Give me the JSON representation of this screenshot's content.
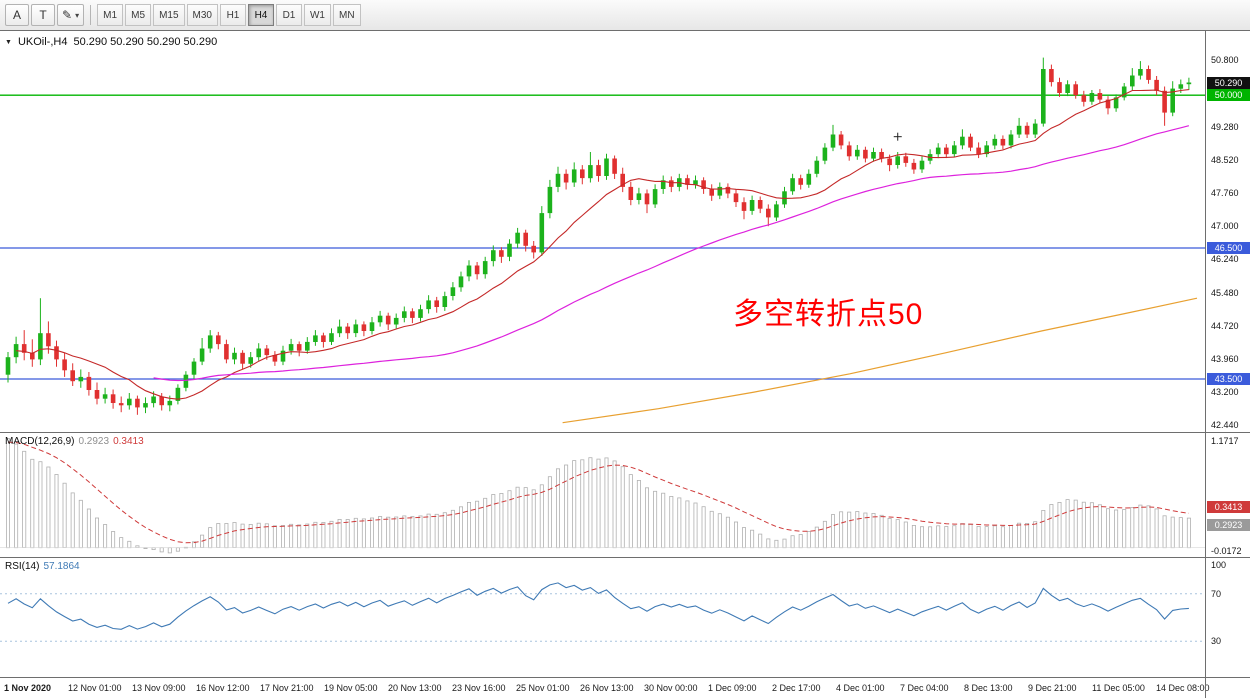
{
  "icons": {
    "collapse": "▼",
    "dropdown_caret": "▾"
  },
  "toolbar": {
    "tools": [
      {
        "name": "cursor-tool-button",
        "label": "A"
      },
      {
        "name": "text-tool-button",
        "label": "T"
      },
      {
        "name": "draw-tool-button",
        "label": "✎",
        "dropdown": true
      }
    ],
    "timeframes": [
      "M1",
      "M5",
      "M15",
      "M30",
      "H1",
      "H4",
      "D1",
      "W1",
      "MN"
    ],
    "active_timeframe": "H4"
  },
  "main_chart": {
    "symbol_label": "UKOil-,H4",
    "ohlc": "50.290 50.290 50.290 50.290",
    "annotation": {
      "text": "多空转折点50",
      "color": "#ff0000"
    },
    "scale": {
      "max": 51.47,
      "min": 42.31
    },
    "colors": {
      "up": "#1cb21c",
      "down": "#e03030",
      "ma_fast": "#c42828",
      "ma_medium": "#dd22dd",
      "ma_slow": "#e8a030"
    },
    "hlines": [
      {
        "label": "50.000",
        "price": 50.0,
        "color": "#00b400"
      },
      {
        "label": "46.500",
        "price": 46.5,
        "color": "#3b5bdb"
      },
      {
        "label": "43.500",
        "price": 43.5,
        "color": "#3b5bdb"
      }
    ],
    "price_axis": {
      "ticks": [
        "50.800",
        "49.280",
        "48.520",
        "47.760",
        "47.000",
        "46.240",
        "45.480",
        "44.720",
        "43.960",
        "43.200",
        "42.440"
      ],
      "badges": [
        {
          "text": "50.290",
          "price": 50.29,
          "bg": "#111111"
        },
        {
          "text": "50.000",
          "price": 50.0,
          "bg": "#00b400"
        },
        {
          "text": "46.500",
          "price": 46.5,
          "bg": "#3b5bdb"
        },
        {
          "text": "43.500",
          "price": 43.5,
          "bg": "#3b5bdb"
        }
      ]
    },
    "marker": {
      "index": 110,
      "price": 49.05
    },
    "ma_slow_points": [
      [
        0.47,
        42.5
      ],
      [
        0.55,
        42.82
      ],
      [
        0.63,
        43.2
      ],
      [
        0.71,
        43.62
      ],
      [
        0.79,
        44.1
      ],
      [
        0.87,
        44.6
      ],
      [
        0.94,
        45.0
      ],
      [
        1.0,
        45.35
      ]
    ],
    "candles": [
      [
        43.6,
        44.12,
        43.42,
        44.0
      ],
      [
        44.0,
        44.47,
        43.86,
        44.3
      ],
      [
        44.3,
        44.62,
        43.93,
        44.1
      ],
      [
        44.1,
        44.41,
        43.78,
        43.95
      ],
      [
        43.95,
        45.35,
        43.82,
        44.55
      ],
      [
        44.55,
        44.82,
        44.08,
        44.25
      ],
      [
        44.25,
        44.38,
        43.78,
        43.95
      ],
      [
        43.95,
        44.1,
        43.55,
        43.7
      ],
      [
        43.7,
        43.86,
        43.34,
        43.45
      ],
      [
        43.45,
        43.72,
        43.3,
        43.55
      ],
      [
        43.55,
        43.66,
        43.12,
        43.25
      ],
      [
        43.25,
        43.42,
        42.92,
        43.05
      ],
      [
        43.05,
        43.3,
        42.94,
        43.15
      ],
      [
        43.15,
        43.26,
        42.82,
        42.95
      ],
      [
        42.95,
        43.1,
        42.74,
        42.9
      ],
      [
        42.9,
        43.18,
        42.8,
        43.05
      ],
      [
        43.05,
        43.12,
        42.68,
        42.85
      ],
      [
        42.85,
        43.08,
        42.72,
        42.95
      ],
      [
        42.95,
        43.22,
        42.85,
        43.1
      ],
      [
        43.1,
        43.18,
        42.78,
        42.9
      ],
      [
        42.9,
        43.12,
        42.76,
        43.0
      ],
      [
        43.0,
        43.38,
        42.92,
        43.3
      ],
      [
        43.3,
        43.68,
        43.22,
        43.6
      ],
      [
        43.6,
        43.98,
        43.5,
        43.9
      ],
      [
        43.9,
        44.44,
        43.82,
        44.2
      ],
      [
        44.2,
        44.62,
        44.1,
        44.5
      ],
      [
        44.5,
        44.58,
        44.18,
        44.3
      ],
      [
        44.3,
        44.4,
        43.86,
        43.95
      ],
      [
        43.95,
        44.22,
        43.84,
        44.1
      ],
      [
        44.1,
        44.16,
        43.72,
        43.85
      ],
      [
        43.85,
        44.12,
        43.76,
        44.0
      ],
      [
        44.0,
        44.32,
        43.92,
        44.2
      ],
      [
        44.2,
        44.28,
        43.94,
        44.05
      ],
      [
        44.05,
        44.14,
        43.8,
        43.9
      ],
      [
        43.9,
        44.26,
        43.82,
        44.15
      ],
      [
        44.15,
        44.42,
        44.06,
        44.3
      ],
      [
        44.3,
        44.36,
        44.02,
        44.15
      ],
      [
        44.15,
        44.46,
        44.08,
        44.35
      ],
      [
        44.35,
        44.62,
        44.26,
        44.5
      ],
      [
        44.5,
        44.56,
        44.22,
        44.35
      ],
      [
        44.35,
        44.66,
        44.28,
        44.55
      ],
      [
        44.55,
        44.86,
        44.46,
        44.7
      ],
      [
        44.7,
        44.78,
        44.42,
        44.55
      ],
      [
        44.55,
        44.86,
        44.46,
        44.75
      ],
      [
        44.75,
        44.82,
        44.48,
        44.6
      ],
      [
        44.6,
        44.92,
        44.52,
        44.8
      ],
      [
        44.8,
        45.06,
        44.7,
        44.95
      ],
      [
        44.95,
        45.02,
        44.62,
        44.75
      ],
      [
        44.75,
        45.0,
        44.66,
        44.9
      ],
      [
        44.9,
        45.16,
        44.8,
        45.05
      ],
      [
        45.05,
        45.12,
        44.78,
        44.9
      ],
      [
        44.9,
        45.2,
        44.82,
        45.1
      ],
      [
        45.1,
        45.42,
        45.0,
        45.3
      ],
      [
        45.3,
        45.38,
        45.02,
        45.15
      ],
      [
        45.15,
        45.5,
        45.06,
        45.4
      ],
      [
        45.4,
        45.72,
        45.3,
        45.6
      ],
      [
        45.6,
        45.96,
        45.5,
        45.85
      ],
      [
        45.85,
        46.22,
        45.74,
        46.1
      ],
      [
        46.1,
        46.18,
        45.78,
        45.9
      ],
      [
        45.9,
        46.3,
        45.8,
        46.2
      ],
      [
        46.2,
        46.56,
        46.08,
        46.45
      ],
      [
        46.45,
        46.52,
        46.16,
        46.3
      ],
      [
        46.3,
        46.7,
        46.2,
        46.6
      ],
      [
        46.6,
        46.96,
        46.5,
        46.85
      ],
      [
        46.85,
        46.92,
        46.42,
        46.55
      ],
      [
        46.55,
        46.66,
        46.26,
        46.4
      ],
      [
        46.4,
        47.46,
        46.32,
        47.3
      ],
      [
        47.3,
        48.06,
        47.18,
        47.9
      ],
      [
        47.9,
        48.36,
        47.78,
        48.2
      ],
      [
        48.2,
        48.3,
        47.84,
        48.0
      ],
      [
        48.0,
        48.46,
        47.9,
        48.3
      ],
      [
        48.3,
        48.4,
        47.96,
        48.1
      ],
      [
        48.1,
        48.7,
        48.0,
        48.4
      ],
      [
        48.4,
        48.52,
        48.02,
        48.15
      ],
      [
        48.15,
        48.66,
        48.06,
        48.55
      ],
      [
        48.55,
        48.62,
        48.08,
        48.2
      ],
      [
        48.2,
        48.34,
        47.78,
        47.9
      ],
      [
        47.9,
        48.02,
        47.48,
        47.6
      ],
      [
        47.6,
        47.88,
        47.5,
        47.75
      ],
      [
        47.75,
        47.84,
        47.3,
        47.5
      ],
      [
        47.5,
        47.96,
        47.42,
        47.85
      ],
      [
        47.85,
        48.16,
        47.74,
        48.05
      ],
      [
        48.05,
        48.14,
        47.78,
        47.9
      ],
      [
        47.9,
        48.2,
        47.8,
        48.1
      ],
      [
        48.1,
        48.18,
        47.84,
        47.95
      ],
      [
        47.95,
        48.16,
        47.86,
        48.05
      ],
      [
        48.05,
        48.12,
        47.74,
        47.85
      ],
      [
        47.85,
        47.96,
        47.58,
        47.7
      ],
      [
        47.7,
        48.0,
        47.62,
        47.9
      ],
      [
        47.9,
        47.98,
        47.64,
        47.75
      ],
      [
        47.75,
        47.84,
        47.44,
        47.55
      ],
      [
        47.55,
        47.66,
        47.16,
        47.35
      ],
      [
        47.35,
        47.7,
        47.26,
        47.6
      ],
      [
        47.6,
        47.68,
        47.3,
        47.4
      ],
      [
        47.4,
        47.5,
        47.0,
        47.2
      ],
      [
        47.2,
        47.58,
        47.12,
        47.5
      ],
      [
        47.5,
        47.9,
        47.42,
        47.8
      ],
      [
        47.8,
        48.2,
        47.72,
        48.1
      ],
      [
        48.1,
        48.18,
        47.84,
        47.95
      ],
      [
        47.95,
        48.3,
        47.88,
        48.2
      ],
      [
        48.2,
        48.6,
        48.12,
        48.5
      ],
      [
        48.5,
        48.9,
        48.42,
        48.8
      ],
      [
        48.8,
        49.32,
        48.72,
        49.1
      ],
      [
        49.1,
        49.18,
        48.76,
        48.85
      ],
      [
        48.85,
        48.94,
        48.5,
        48.6
      ],
      [
        48.6,
        48.86,
        48.52,
        48.75
      ],
      [
        48.75,
        48.82,
        48.46,
        48.55
      ],
      [
        48.55,
        48.8,
        48.48,
        48.7
      ],
      [
        48.7,
        48.78,
        48.46,
        48.55
      ],
      [
        48.55,
        48.64,
        48.26,
        48.4
      ],
      [
        48.4,
        48.7,
        48.32,
        48.6
      ],
      [
        48.6,
        48.68,
        48.36,
        48.45
      ],
      [
        48.45,
        48.54,
        48.2,
        48.3
      ],
      [
        48.3,
        48.6,
        48.22,
        48.5
      ],
      [
        48.5,
        48.76,
        48.42,
        48.65
      ],
      [
        48.65,
        48.9,
        48.56,
        48.8
      ],
      [
        48.8,
        48.88,
        48.56,
        48.65
      ],
      [
        48.65,
        48.95,
        48.58,
        48.85
      ],
      [
        48.85,
        49.22,
        48.76,
        49.05
      ],
      [
        49.05,
        49.12,
        48.72,
        48.8
      ],
      [
        48.8,
        48.92,
        48.56,
        48.65
      ],
      [
        48.65,
        48.95,
        48.58,
        48.85
      ],
      [
        48.85,
        49.1,
        48.76,
        49.0
      ],
      [
        49.0,
        49.08,
        48.76,
        48.85
      ],
      [
        48.85,
        49.2,
        48.78,
        49.1
      ],
      [
        49.1,
        49.48,
        49.02,
        49.3
      ],
      [
        49.3,
        49.38,
        49.02,
        49.1
      ],
      [
        49.1,
        49.45,
        49.02,
        49.35
      ],
      [
        49.35,
        50.86,
        49.28,
        50.6
      ],
      [
        50.6,
        50.7,
        50.2,
        50.3
      ],
      [
        50.3,
        50.4,
        49.96,
        50.05
      ],
      [
        50.05,
        50.34,
        49.98,
        50.25
      ],
      [
        50.25,
        50.32,
        49.92,
        50.0
      ],
      [
        50.0,
        50.1,
        49.74,
        49.85
      ],
      [
        49.85,
        50.12,
        49.78,
        50.05
      ],
      [
        50.05,
        50.14,
        49.82,
        49.9
      ],
      [
        49.9,
        49.98,
        49.56,
        49.7
      ],
      [
        49.7,
        50.02,
        49.62,
        49.95
      ],
      [
        49.95,
        50.28,
        49.88,
        50.2
      ],
      [
        50.2,
        50.62,
        50.12,
        50.45
      ],
      [
        50.45,
        50.78,
        50.36,
        50.6
      ],
      [
        50.6,
        50.68,
        50.26,
        50.35
      ],
      [
        50.35,
        50.44,
        50.0,
        50.1
      ],
      [
        50.1,
        50.2,
        49.3,
        49.6
      ],
      [
        49.6,
        50.32,
        49.52,
        50.15
      ],
      [
        50.15,
        50.36,
        50.05,
        50.25
      ],
      [
        50.25,
        50.4,
        50.12,
        50.29
      ]
    ]
  },
  "macd": {
    "label": "MACD(12,26,9)",
    "value": "0.2923",
    "signal": "0.3413",
    "axis_max": "1.1717",
    "axis_min": "-0.0172"
  },
  "rsi": {
    "label": "RSI(14)",
    "value": "57.1864",
    "levels": [
      70,
      30
    ],
    "axis_labels": [
      {
        "text": "100",
        "value": 100
      },
      {
        "text": "70",
        "value": 70
      },
      {
        "text": "30",
        "value": 30
      }
    ]
  },
  "time_axis": {
    "labels": [
      "1 Nov 2020",
      "12 Nov 01:00",
      "13 Nov 09:00",
      "16 Nov 12:00",
      "17 Nov 21:00",
      "19 Nov 05:00",
      "20 Nov 13:00",
      "23 Nov 16:00",
      "25 Nov 01:00",
      "26 Nov 13:00",
      "30 Nov 00:00",
      "1 Dec 09:00",
      "2 Dec 17:00",
      "4 Dec 01:00",
      "7 Dec 04:00",
      "8 Dec 13:00",
      "9 Dec 21:00",
      "11 Dec 05:00",
      "14 Dec 08:00"
    ]
  }
}
